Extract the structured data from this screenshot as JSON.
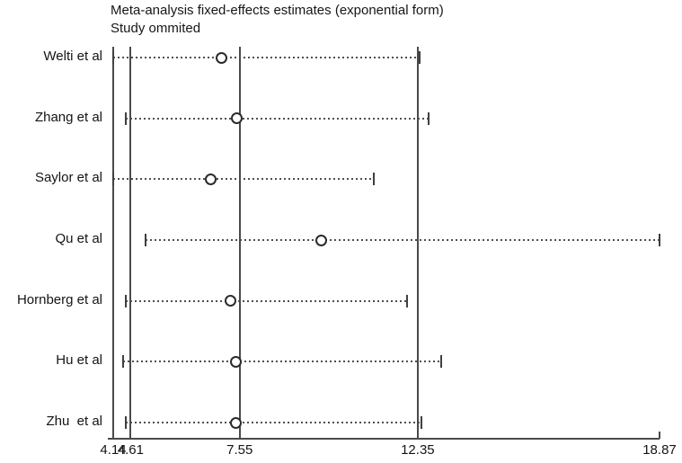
{
  "chart_data": {
    "type": "scatter",
    "subtype": "forest-sensitivity-leave-one-out",
    "title": "Meta-analysis fixed-effects estimates (exponential form)",
    "subtitle": "Study ommited",
    "x_axis": {
      "min": 4.14,
      "max": 18.87,
      "tick_values": [
        4.14,
        4.61,
        7.55,
        12.35,
        18.87
      ],
      "tick_labels": [
        "4.14",
        "4.61",
        "7.55",
        "12.35",
        "18.87"
      ]
    },
    "reference_lines": [
      4.14,
      4.61,
      7.55,
      12.35
    ],
    "overall": {
      "estimate": 7.55,
      "ci_lower": 4.61,
      "ci_upper": 12.35
    },
    "studies": [
      {
        "label": "Welti et al",
        "estimate": 7.06,
        "ci_lower": 4.14,
        "ci_upper": 12.4
      },
      {
        "label": "Zhang et al",
        "estimate": 7.48,
        "ci_lower": 4.47,
        "ci_upper": 12.65
      },
      {
        "label": "Saylor et al",
        "estimate": 6.76,
        "ci_lower": 4.14,
        "ci_upper": 11.17
      },
      {
        "label": "Qu et al",
        "estimate": 9.75,
        "ci_lower": 5.02,
        "ci_upper": 18.87
      },
      {
        "label": "Hornberg et al",
        "estimate": 7.3,
        "ci_lower": 4.47,
        "ci_upper": 12.07
      },
      {
        "label": "Hu et al",
        "estimate": 7.45,
        "ci_lower": 4.4,
        "ci_upper": 12.98
      },
      {
        "label": "Zhu  et al",
        "estimate": 7.45,
        "ci_lower": 4.49,
        "ci_upper": 12.45
      }
    ],
    "legend": "none",
    "grid": "off",
    "colors": {
      "background": "#ffffff",
      "line": "#4a4a4a",
      "dotted_ci": "#4f4f4f",
      "marker_stroke": "#2b2b2b",
      "text": "#141414"
    }
  }
}
